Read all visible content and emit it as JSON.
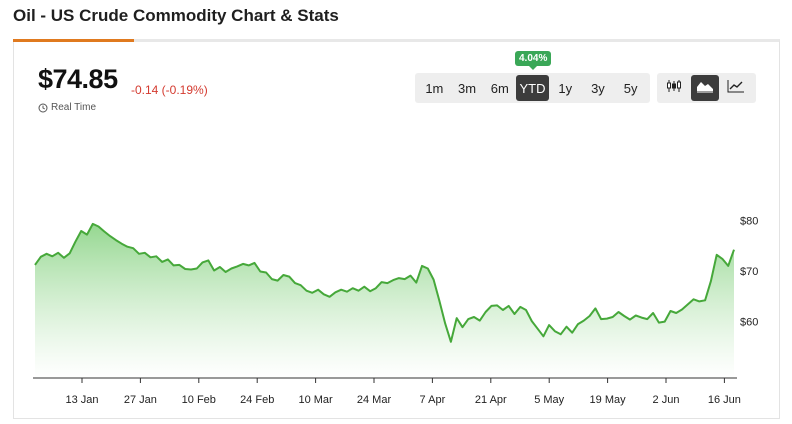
{
  "page": {
    "title": "Oil - US Crude Commodity Chart & Stats"
  },
  "quote": {
    "price": "$74.85",
    "change": "-0.14 (-0.19%)",
    "realtime_label": "Real Time"
  },
  "ranges": [
    {
      "label": "1m",
      "active": false
    },
    {
      "label": "3m",
      "active": false
    },
    {
      "label": "6m",
      "active": false
    },
    {
      "label": "YTD",
      "active": true
    },
    {
      "label": "1y",
      "active": false
    },
    {
      "label": "3y",
      "active": false
    },
    {
      "label": "5y",
      "active": false
    }
  ],
  "ytd_badge": "4.04%",
  "chart_types": [
    {
      "icon": "candlestick-icon",
      "active": false
    },
    {
      "icon": "area-chart-icon",
      "active": true
    },
    {
      "icon": "line-chart-icon",
      "active": false
    }
  ],
  "colors": {
    "line": "#46a83a",
    "fill_top": "#8fd58a",
    "accent": "#e07a1f",
    "negative": "#d43a2f",
    "badge": "#3aa757"
  },
  "chart_data": {
    "type": "area",
    "y_tick_labels": [
      "$80",
      "$70",
      "$60"
    ],
    "y_ticks": [
      80,
      70,
      60
    ],
    "x_tick_labels": [
      "13 Jan",
      "27 Jan",
      "10 Feb",
      "24 Feb",
      "10 Mar",
      "24 Mar",
      "7 Apr",
      "21 Apr",
      "5 May",
      "19 May",
      "2 Jun",
      "16 Jun"
    ],
    "values": [
      71.2,
      72.8,
      73.4,
      72.9,
      73.6,
      72.6,
      73.5,
      75.8,
      77.9,
      77.2,
      79.3,
      78.8,
      77.8,
      76.9,
      76.1,
      75.4,
      74.8,
      74.5,
      73.4,
      73.6,
      72.7,
      72.9,
      71.8,
      72.3,
      71.1,
      71.2,
      70.4,
      70.3,
      70.5,
      71.7,
      72.1,
      70.1,
      70.8,
      69.8,
      70.5,
      70.9,
      71.4,
      71.1,
      71.6,
      69.9,
      69.7,
      68.4,
      68.1,
      69.2,
      68.9,
      67.6,
      67.2,
      66.1,
      65.7,
      66.3,
      65.4,
      64.9,
      65.8,
      66.3,
      65.9,
      66.6,
      66.1,
      66.9,
      66.0,
      66.6,
      67.8,
      67.6,
      68.2,
      68.6,
      68.4,
      69.1,
      67.7,
      71.0,
      70.5,
      68.3,
      64.1,
      59.6,
      56.0,
      60.7,
      58.9,
      60.5,
      60.9,
      60.2,
      61.9,
      63.1,
      63.2,
      62.3,
      63.1,
      61.5,
      62.9,
      62.3,
      60.1,
      58.6,
      57.1,
      59.3,
      58.1,
      57.5,
      59.0,
      57.8,
      59.5,
      60.2,
      61.1,
      62.6,
      60.5,
      60.6,
      60.9,
      61.9,
      61.1,
      60.4,
      61.2,
      60.8,
      60.5,
      61.7,
      59.8,
      60.0,
      62.1,
      61.7,
      62.4,
      63.4,
      64.4,
      64.0,
      64.2,
      68.0,
      73.2,
      72.4,
      71.0,
      74.2
    ]
  }
}
